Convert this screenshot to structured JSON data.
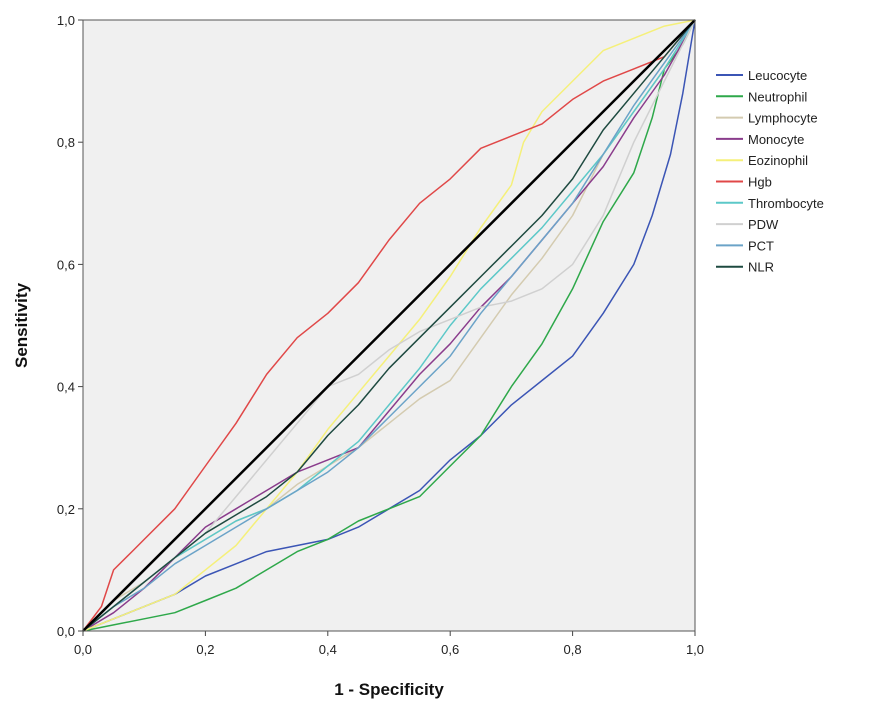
{
  "chart_data": {
    "type": "line",
    "title": "",
    "xlabel": "1 - Specificity",
    "ylabel": "Sensitivity",
    "xlim": [
      0,
      1
    ],
    "ylim": [
      0,
      1
    ],
    "x_ticks": [
      "0,0",
      "0,2",
      "0,4",
      "0,6",
      "0,8",
      "1,0"
    ],
    "y_ticks": [
      "0,0",
      "0,2",
      "0,4",
      "0,6",
      "0,8",
      "1,0"
    ],
    "grid": false,
    "legend_position": "right",
    "background": "#f0f0f0",
    "reference_line": {
      "x": [
        0,
        1
      ],
      "y": [
        0,
        1
      ],
      "color": "#000000"
    },
    "series": [
      {
        "name": "Leucocyte",
        "color": "#3b55b5",
        "x": [
          0,
          0.05,
          0.1,
          0.15,
          0.2,
          0.25,
          0.3,
          0.35,
          0.4,
          0.45,
          0.5,
          0.55,
          0.6,
          0.65,
          0.7,
          0.75,
          0.8,
          0.85,
          0.9,
          0.93,
          0.96,
          0.98,
          1.0
        ],
        "y": [
          0,
          0.02,
          0.04,
          0.06,
          0.09,
          0.11,
          0.13,
          0.14,
          0.15,
          0.17,
          0.2,
          0.23,
          0.28,
          0.32,
          0.37,
          0.41,
          0.45,
          0.52,
          0.6,
          0.68,
          0.78,
          0.88,
          1.0
        ]
      },
      {
        "name": "Neutrophil",
        "color": "#2ea84a",
        "x": [
          0,
          0.05,
          0.1,
          0.15,
          0.2,
          0.25,
          0.3,
          0.35,
          0.4,
          0.45,
          0.5,
          0.55,
          0.6,
          0.65,
          0.7,
          0.75,
          0.8,
          0.85,
          0.9,
          0.93,
          0.95,
          0.98,
          1.0
        ],
        "y": [
          0,
          0.01,
          0.02,
          0.03,
          0.05,
          0.07,
          0.1,
          0.13,
          0.15,
          0.18,
          0.2,
          0.22,
          0.27,
          0.32,
          0.4,
          0.47,
          0.56,
          0.67,
          0.75,
          0.84,
          0.92,
          0.96,
          1.0
        ]
      },
      {
        "name": "Lymphocyte",
        "color": "#d4cbb0",
        "x": [
          0,
          0.05,
          0.1,
          0.15,
          0.2,
          0.25,
          0.3,
          0.35,
          0.4,
          0.45,
          0.5,
          0.55,
          0.6,
          0.65,
          0.7,
          0.75,
          0.8,
          0.85,
          0.9,
          0.95,
          1.0
        ],
        "y": [
          0,
          0.05,
          0.08,
          0.12,
          0.15,
          0.18,
          0.2,
          0.24,
          0.27,
          0.3,
          0.34,
          0.38,
          0.41,
          0.48,
          0.55,
          0.61,
          0.68,
          0.78,
          0.85,
          0.92,
          1.0
        ]
      },
      {
        "name": "Monocyte",
        "color": "#8a3c8c",
        "x": [
          0,
          0.05,
          0.1,
          0.15,
          0.2,
          0.25,
          0.3,
          0.35,
          0.4,
          0.45,
          0.5,
          0.55,
          0.6,
          0.65,
          0.7,
          0.75,
          0.8,
          0.85,
          0.9,
          0.95,
          1.0
        ],
        "y": [
          0,
          0.03,
          0.07,
          0.12,
          0.17,
          0.2,
          0.23,
          0.26,
          0.28,
          0.3,
          0.36,
          0.42,
          0.47,
          0.53,
          0.58,
          0.64,
          0.7,
          0.76,
          0.84,
          0.91,
          1.0
        ]
      },
      {
        "name": "Eozinophil",
        "color": "#f5f07a",
        "x": [
          0,
          0.05,
          0.1,
          0.15,
          0.2,
          0.25,
          0.3,
          0.35,
          0.4,
          0.45,
          0.5,
          0.55,
          0.6,
          0.65,
          0.7,
          0.72,
          0.75,
          0.8,
          0.85,
          0.9,
          0.95,
          1.0
        ],
        "y": [
          0,
          0.02,
          0.04,
          0.06,
          0.1,
          0.14,
          0.2,
          0.26,
          0.33,
          0.39,
          0.45,
          0.51,
          0.58,
          0.66,
          0.73,
          0.8,
          0.85,
          0.9,
          0.95,
          0.97,
          0.99,
          1.0
        ]
      },
      {
        "name": "Hgb",
        "color": "#e04848",
        "x": [
          0,
          0.03,
          0.05,
          0.08,
          0.1,
          0.15,
          0.2,
          0.25,
          0.3,
          0.35,
          0.4,
          0.45,
          0.5,
          0.55,
          0.6,
          0.65,
          0.7,
          0.75,
          0.8,
          0.85,
          0.9,
          0.95,
          1.0
        ],
        "y": [
          0,
          0.04,
          0.1,
          0.13,
          0.15,
          0.2,
          0.27,
          0.34,
          0.42,
          0.48,
          0.52,
          0.57,
          0.64,
          0.7,
          0.74,
          0.79,
          0.81,
          0.83,
          0.87,
          0.9,
          0.92,
          0.94,
          1.0
        ]
      },
      {
        "name": "Thrombocyte",
        "color": "#5cc8c8",
        "x": [
          0,
          0.05,
          0.1,
          0.15,
          0.2,
          0.25,
          0.3,
          0.35,
          0.4,
          0.45,
          0.5,
          0.55,
          0.6,
          0.65,
          0.7,
          0.75,
          0.8,
          0.85,
          0.9,
          0.95,
          1.0
        ],
        "y": [
          0,
          0.04,
          0.08,
          0.12,
          0.15,
          0.18,
          0.2,
          0.23,
          0.27,
          0.31,
          0.37,
          0.43,
          0.5,
          0.56,
          0.61,
          0.66,
          0.72,
          0.78,
          0.85,
          0.92,
          1.0
        ]
      },
      {
        "name": "PDW",
        "color": "#d0d0d0",
        "x": [
          0,
          0.05,
          0.1,
          0.15,
          0.2,
          0.25,
          0.3,
          0.35,
          0.4,
          0.45,
          0.5,
          0.55,
          0.6,
          0.65,
          0.7,
          0.75,
          0.8,
          0.85,
          0.9,
          0.95,
          1.0
        ],
        "y": [
          0,
          0.04,
          0.08,
          0.12,
          0.16,
          0.22,
          0.28,
          0.34,
          0.4,
          0.42,
          0.46,
          0.49,
          0.51,
          0.53,
          0.54,
          0.56,
          0.6,
          0.68,
          0.8,
          0.9,
          1.0
        ]
      },
      {
        "name": "PCT",
        "color": "#6ba3c8",
        "x": [
          0,
          0.05,
          0.1,
          0.15,
          0.2,
          0.25,
          0.3,
          0.35,
          0.4,
          0.45,
          0.5,
          0.55,
          0.6,
          0.65,
          0.7,
          0.75,
          0.8,
          0.85,
          0.9,
          0.95,
          1.0
        ],
        "y": [
          0,
          0.04,
          0.07,
          0.11,
          0.14,
          0.17,
          0.2,
          0.23,
          0.26,
          0.3,
          0.35,
          0.4,
          0.45,
          0.52,
          0.58,
          0.64,
          0.7,
          0.78,
          0.86,
          0.93,
          1.0
        ]
      },
      {
        "name": "NLR",
        "color": "#1e4a40",
        "x": [
          0,
          0.05,
          0.1,
          0.15,
          0.2,
          0.25,
          0.3,
          0.35,
          0.4,
          0.45,
          0.5,
          0.55,
          0.6,
          0.65,
          0.7,
          0.75,
          0.8,
          0.85,
          0.9,
          0.95,
          1.0
        ],
        "y": [
          0,
          0.04,
          0.08,
          0.12,
          0.16,
          0.19,
          0.22,
          0.26,
          0.32,
          0.37,
          0.43,
          0.48,
          0.53,
          0.58,
          0.63,
          0.68,
          0.74,
          0.82,
          0.88,
          0.94,
          1.0
        ]
      }
    ]
  }
}
